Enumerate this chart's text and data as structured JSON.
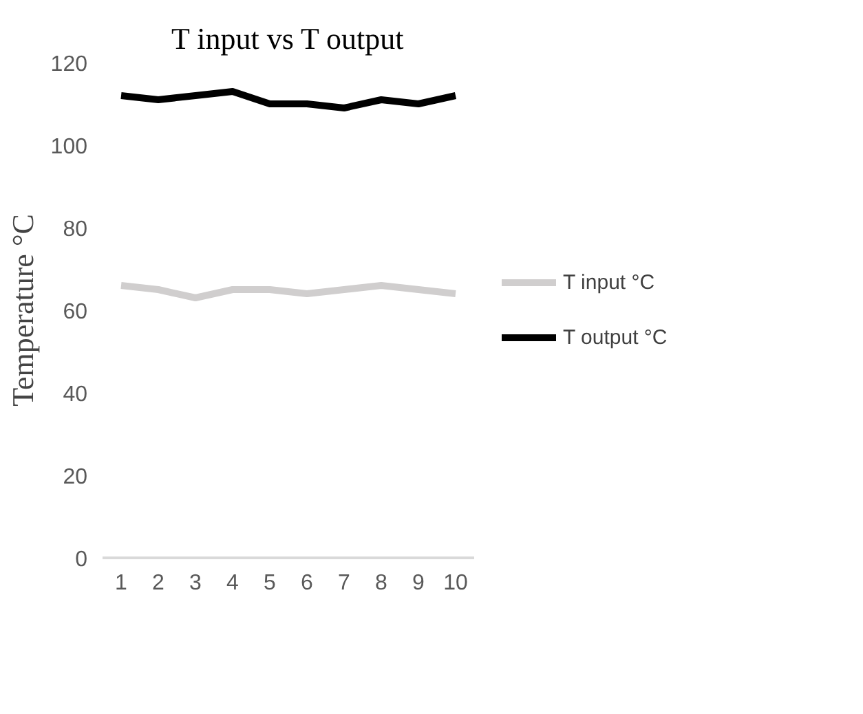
{
  "chart_data": {
    "type": "line",
    "title": "T input vs T output",
    "ylabel": "Temperature °C",
    "categories": [
      "1",
      "2",
      "3",
      "4",
      "5",
      "6",
      "7",
      "8",
      "9",
      "10"
    ],
    "series": [
      {
        "name": "T input °C",
        "color": "#d0cece",
        "values": [
          66,
          65,
          63,
          65,
          65,
          64,
          65,
          66,
          65,
          64
        ]
      },
      {
        "name": "T output °C",
        "color": "#000000",
        "values": [
          112,
          111,
          112,
          113,
          110,
          110,
          109,
          111,
          110,
          112
        ]
      }
    ],
    "ylim": [
      0,
      120
    ],
    "yticks": [
      0,
      20,
      40,
      60,
      80,
      100,
      120
    ],
    "grid": false,
    "legend": "right"
  }
}
